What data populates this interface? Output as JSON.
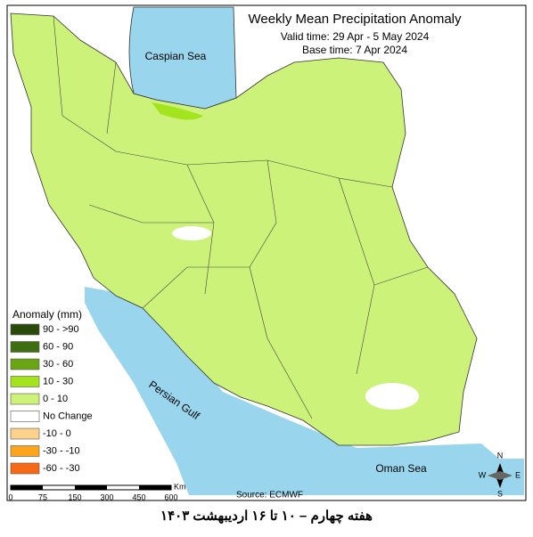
{
  "header": {
    "title": "Weekly Mean Precipitation Anomaly",
    "valid_time": "Valid time: 29 Apr - 5 May 2024",
    "base_time": "Base time: 7 Apr 2024"
  },
  "seas": {
    "caspian": "Caspian Sea",
    "gulf": "Persian Gulf",
    "oman": "Oman Sea"
  },
  "legend": {
    "title": "Anomaly (mm)",
    "items": [
      {
        "label": "90 - >90",
        "color": "#2a4a0c"
      },
      {
        "label": "60 - 90",
        "color": "#3f6e12"
      },
      {
        "label": "30 - 60",
        "color": "#6aa514"
      },
      {
        "label": "10 - 30",
        "color": "#a4e41e"
      },
      {
        "label": "0 - 10",
        "color": "#cdf27a"
      },
      {
        "label": "No Change",
        "color": "#ffffff"
      },
      {
        "label": "-10 - 0",
        "color": "#fdd28a"
      },
      {
        "label": "-30 - -10",
        "color": "#fca41c"
      },
      {
        "label": "-60 - -30",
        "color": "#f66a16"
      }
    ]
  },
  "scale": {
    "labels": [
      "0",
      "75",
      "150",
      "300",
      "450",
      "600"
    ],
    "unit": "Km"
  },
  "compass": {
    "n": "N",
    "s": "S",
    "e": "E",
    "w": "W"
  },
  "source": "Source: ECMWF",
  "caption": "هفته چهارم – ۱۰ تا ۱۶ اردیبهشت ۱۴۰۳"
}
